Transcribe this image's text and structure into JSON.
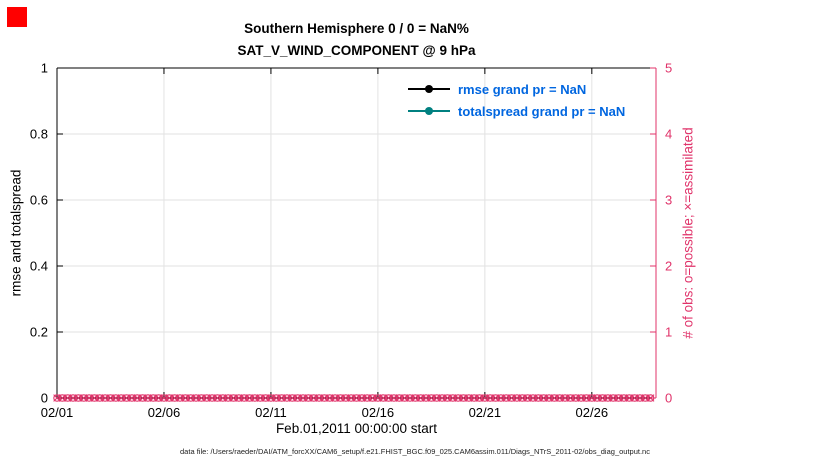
{
  "window": {
    "red_square_color": "#ff0000"
  },
  "chart_data": {
    "type": "line",
    "title_line1": "Southern Hemisphere 0 / 0 = NaN%",
    "title_line2": "SAT_V_WIND_COMPONENT @ 9 hPa",
    "xlabel": "Feb.01,2011 00:00:00 start",
    "footer": "data file: /Users/raeder/DAI/ATM_forcXX/CAM6_setup/f.e21.FHIST_BGC.f09_025.CAM6assim.011/Diags_NTrS_2011-02/obs_diag_output.nc",
    "grid_color": "#e2e2e2",
    "grid": true,
    "x_range_days": [
      0,
      28
    ],
    "x_ticks": [
      {
        "day": 0,
        "label": "02/01"
      },
      {
        "day": 5,
        "label": "02/06"
      },
      {
        "day": 10,
        "label": "02/11"
      },
      {
        "day": 15,
        "label": "02/16"
      },
      {
        "day": 20,
        "label": "02/21"
      },
      {
        "day": 25,
        "label": "02/26"
      }
    ],
    "left_axis": {
      "label": "rmse and totalspread",
      "min": 0,
      "max": 1,
      "ticks": [
        0,
        0.2,
        0.4,
        0.6,
        0.8,
        1
      ],
      "color": "#000000"
    },
    "right_axis": {
      "label": "# of obs: o=possible; ×=assimilated",
      "min": 0,
      "max": 5,
      "ticks": [
        0,
        1,
        2,
        3,
        4,
        5
      ],
      "color": "#e0336a"
    },
    "series": [
      {
        "name": "rmse",
        "color": "#000000",
        "grand_pr": "NaN",
        "values": []
      },
      {
        "name": "totalspread",
        "color": "#008080",
        "grand_pr": "NaN",
        "values": []
      }
    ],
    "obs_markers": {
      "start_day": 0,
      "end_day": 27.75,
      "step_days": 0.25,
      "value": 0,
      "possible_marker": "o",
      "assimilated_marker": "×"
    },
    "legend_text_color": "#0066e0",
    "legend": [
      {
        "label": "rmse grand pr = NaN",
        "line_color": "#000000",
        "marker": "circle"
      },
      {
        "label": "totalspread grand pr = NaN",
        "line_color": "#008080",
        "marker": "circle"
      }
    ]
  }
}
